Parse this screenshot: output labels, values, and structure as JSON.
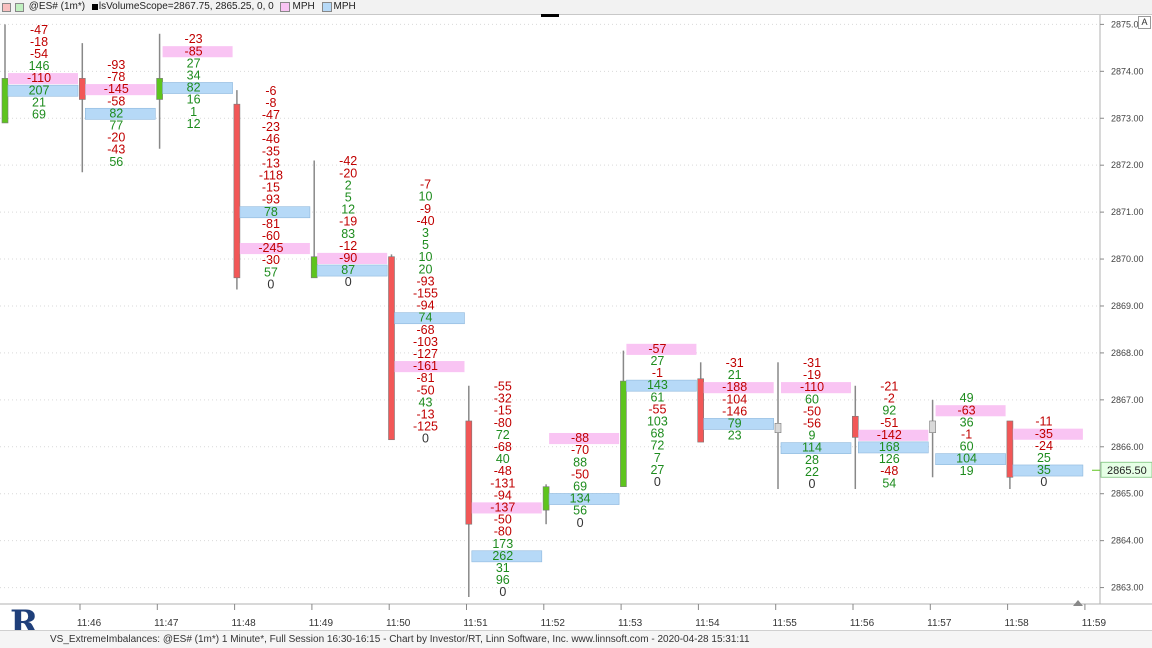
{
  "header": {
    "symbol": "@ES# (1m*)",
    "study": "lsVolumeScope=2867.75, 2865.25, 0, 0",
    "legend1": "MPH",
    "legend2": "MPH",
    "corner_button": "A"
  },
  "footer": {
    "text": "VS_ExtremeImbalances: @ES# (1m*) 1 Minute*, Full Session 16:30-16:15 - Chart by Investor/RT, Linn Software, Inc. www.linnsoft.com - 2020-04-28 15:31:11"
  },
  "colors": {
    "up_candle": "#5ec41e",
    "down_candle": "#f25757",
    "neutral_candle": "#d9d9d9",
    "pos_text": "#1e8c1e",
    "neg_text": "#c00000",
    "zero_text": "#333333",
    "pink_zone": "#f9c4f3",
    "blue_zone": "#b6d9f7",
    "last_price_badge": "#e6ffe6"
  },
  "chart_data": {
    "type": "footprint",
    "title": "@ES# (1m*)",
    "tick_size": 0.25,
    "y_range": [
      2862.65,
      2875.2
    ],
    "y_ticks": [
      "2863.00",
      "2864.00",
      "2865.00",
      "2866.00",
      "2867.00",
      "2868.00",
      "2869.00",
      "2870.00",
      "2871.00",
      "2872.00",
      "2873.00",
      "2874.00",
      "2875.00"
    ],
    "x_ticks": [
      "11:46",
      "11:47",
      "11:48",
      "11:49",
      "11:50",
      "11:51",
      "11:52",
      "11:53",
      "11:54",
      "11:55",
      "11:56",
      "11:57",
      "11:58",
      "11:59"
    ],
    "last_price": "2865.50",
    "bars": [
      {
        "open": 2872.9,
        "close": 2873.85,
        "high": 2875.0,
        "low": 2872.9,
        "top": 2874.8,
        "delta": [
          -47,
          -18,
          -54,
          146,
          -110,
          207,
          21,
          69
        ],
        "pink": 4,
        "blue": 5
      },
      {
        "open": 2873.85,
        "close": 2873.4,
        "high": 2874.6,
        "low": 2871.85,
        "top": 2874.05,
        "delta": [
          -93,
          -78,
          -145,
          -58,
          82,
          77,
          -20,
          -43,
          56
        ],
        "pink": 2,
        "blue": 4
      },
      {
        "open": 2873.4,
        "close": 2873.85,
        "high": 2874.8,
        "low": 2872.35,
        "top": 2874.6,
        "delta": [
          -23,
          -85,
          27,
          34,
          82,
          16,
          1,
          12
        ],
        "pink": 1,
        "blue": 4
      },
      {
        "open": 2873.3,
        "close": 2869.6,
        "high": 2873.6,
        "low": 2869.35,
        "top": 2873.5,
        "delta": [
          -6,
          -8,
          -47,
          -23,
          -46,
          -35,
          -13,
          -118,
          -15,
          -93,
          78,
          -81,
          -60,
          -245,
          -30,
          57,
          0
        ],
        "pink": 13,
        "blue": 10
      },
      {
        "open": 2869.6,
        "close": 2870.05,
        "high": 2872.1,
        "low": 2869.6,
        "top": 2872.0,
        "delta": [
          -42,
          -20,
          2,
          5,
          12,
          -19,
          83,
          -12,
          -90,
          87,
          0
        ],
        "pink": 8,
        "blue": 9
      },
      {
        "open": 2870.05,
        "close": 2866.15,
        "high": 2870.1,
        "low": 2866.15,
        "top": 2871.5,
        "delta": [
          -7,
          10,
          -9,
          -40,
          3,
          5,
          10,
          20,
          -93,
          -155,
          -94,
          74,
          -68,
          -103,
          -127,
          -161,
          -81,
          -50,
          43,
          -13,
          -125,
          0
        ],
        "pink": 15,
        "blue": 11
      },
      {
        "open": 2866.55,
        "close": 2864.35,
        "high": 2867.3,
        "low": 2862.8,
        "top": 2867.2,
        "delta": [
          -55,
          -32,
          -15,
          -80,
          72,
          -68,
          40,
          -48,
          -131,
          -94,
          -137,
          -50,
          -80,
          173,
          262,
          31,
          96,
          0
        ],
        "pink": 10,
        "blue": 14
      },
      {
        "open": 2864.65,
        "close": 2865.15,
        "high": 2865.2,
        "low": 2864.35,
        "top": 2866.1,
        "delta": [
          -88,
          -70,
          88,
          -50,
          69,
          134,
          56,
          0
        ],
        "pink": 0,
        "blue": 5
      },
      {
        "open": 2865.15,
        "close": 2867.4,
        "high": 2868.05,
        "low": 2865.15,
        "top": 2868.0,
        "delta": [
          -57,
          27,
          -1,
          143,
          61,
          -55,
          103,
          68,
          72,
          7,
          27,
          0
        ],
        "pink": 0,
        "blue": 3
      },
      {
        "open": 2867.45,
        "close": 2866.1,
        "high": 2867.8,
        "low": 2866.1,
        "top": 2867.7,
        "delta": [
          -31,
          21,
          -188,
          -104,
          -146,
          79,
          23
        ],
        "pink": 2,
        "blue": 5
      },
      {
        "open": 2866.3,
        "close": 2866.5,
        "high": 2867.8,
        "low": 2865.1,
        "top": 2867.7,
        "delta": [
          -31,
          -19,
          -110,
          60,
          -50,
          -56,
          9,
          114,
          28,
          22,
          0
        ],
        "pink": 2,
        "blue": 7
      },
      {
        "open": 2866.65,
        "close": 2866.2,
        "high": 2867.3,
        "low": 2865.1,
        "top": 2867.2,
        "delta": [
          -21,
          -2,
          92,
          -51,
          -142,
          168,
          126,
          -48,
          54
        ],
        "pink": 4,
        "blue": 5
      },
      {
        "open": 2866.3,
        "close": 2866.55,
        "high": 2867.0,
        "low": 2865.35,
        "top": 2866.95,
        "delta": [
          49,
          -63,
          36,
          -1,
          60,
          104,
          19
        ],
        "pink": 1,
        "blue": 5
      },
      {
        "open": 2866.55,
        "close": 2865.35,
        "high": 2866.55,
        "low": 2865.1,
        "top": 2866.45,
        "delta": [
          -11,
          -35,
          -24,
          25,
          35,
          0
        ],
        "pink": 1,
        "blue": 4
      }
    ]
  }
}
